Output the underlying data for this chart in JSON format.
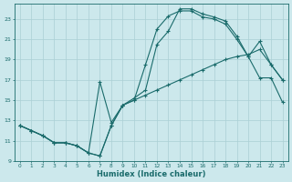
{
  "xlabel": "Humidex (Indice chaleur)",
  "bg_color": "#cce8ec",
  "grid_color": "#aacfd4",
  "line_color": "#1a6b6b",
  "xlim": [
    -0.5,
    23.5
  ],
  "ylim": [
    9,
    24.5
  ],
  "xticks": [
    0,
    1,
    2,
    3,
    4,
    5,
    6,
    7,
    8,
    9,
    10,
    11,
    12,
    13,
    14,
    15,
    16,
    17,
    18,
    19,
    20,
    21,
    22,
    23
  ],
  "yticks": [
    9,
    11,
    13,
    15,
    17,
    19,
    21,
    23
  ],
  "line1_x": [
    0,
    1,
    2,
    3,
    4,
    5,
    6,
    7,
    8,
    9,
    10,
    11,
    12,
    13,
    14,
    15,
    16,
    17,
    18,
    19,
    20,
    21,
    22,
    23
  ],
  "line1_y": [
    12.5,
    12.0,
    11.5,
    10.8,
    10.8,
    10.5,
    9.8,
    9.5,
    12.5,
    14.5,
    15.0,
    15.5,
    16.0,
    16.5,
    17.0,
    17.5,
    18.0,
    18.5,
    19.0,
    19.3,
    19.5,
    20.0,
    18.5,
    17.0
  ],
  "line2_x": [
    0,
    1,
    2,
    3,
    4,
    5,
    6,
    7,
    8,
    9,
    10,
    11,
    12,
    13,
    14,
    15,
    16,
    17,
    18,
    19,
    20,
    21,
    22,
    23
  ],
  "line2_y": [
    12.5,
    12.0,
    11.5,
    10.8,
    10.8,
    10.5,
    9.8,
    16.8,
    12.8,
    14.5,
    15.0,
    18.5,
    22.0,
    23.3,
    23.8,
    23.8,
    23.2,
    23.0,
    22.5,
    21.0,
    19.3,
    20.8,
    18.5,
    17.0
  ],
  "line3_x": [
    0,
    1,
    2,
    3,
    4,
    5,
    6,
    7,
    8,
    9,
    10,
    11,
    12,
    13,
    14,
    15,
    16,
    17,
    18,
    19,
    20,
    21,
    22,
    23
  ],
  "line3_y": [
    12.5,
    12.0,
    11.5,
    10.8,
    10.8,
    10.5,
    9.8,
    9.5,
    12.5,
    14.5,
    15.2,
    16.0,
    20.5,
    21.8,
    24.0,
    24.0,
    23.5,
    23.2,
    22.8,
    21.3,
    19.3,
    17.2,
    17.2,
    14.8
  ]
}
